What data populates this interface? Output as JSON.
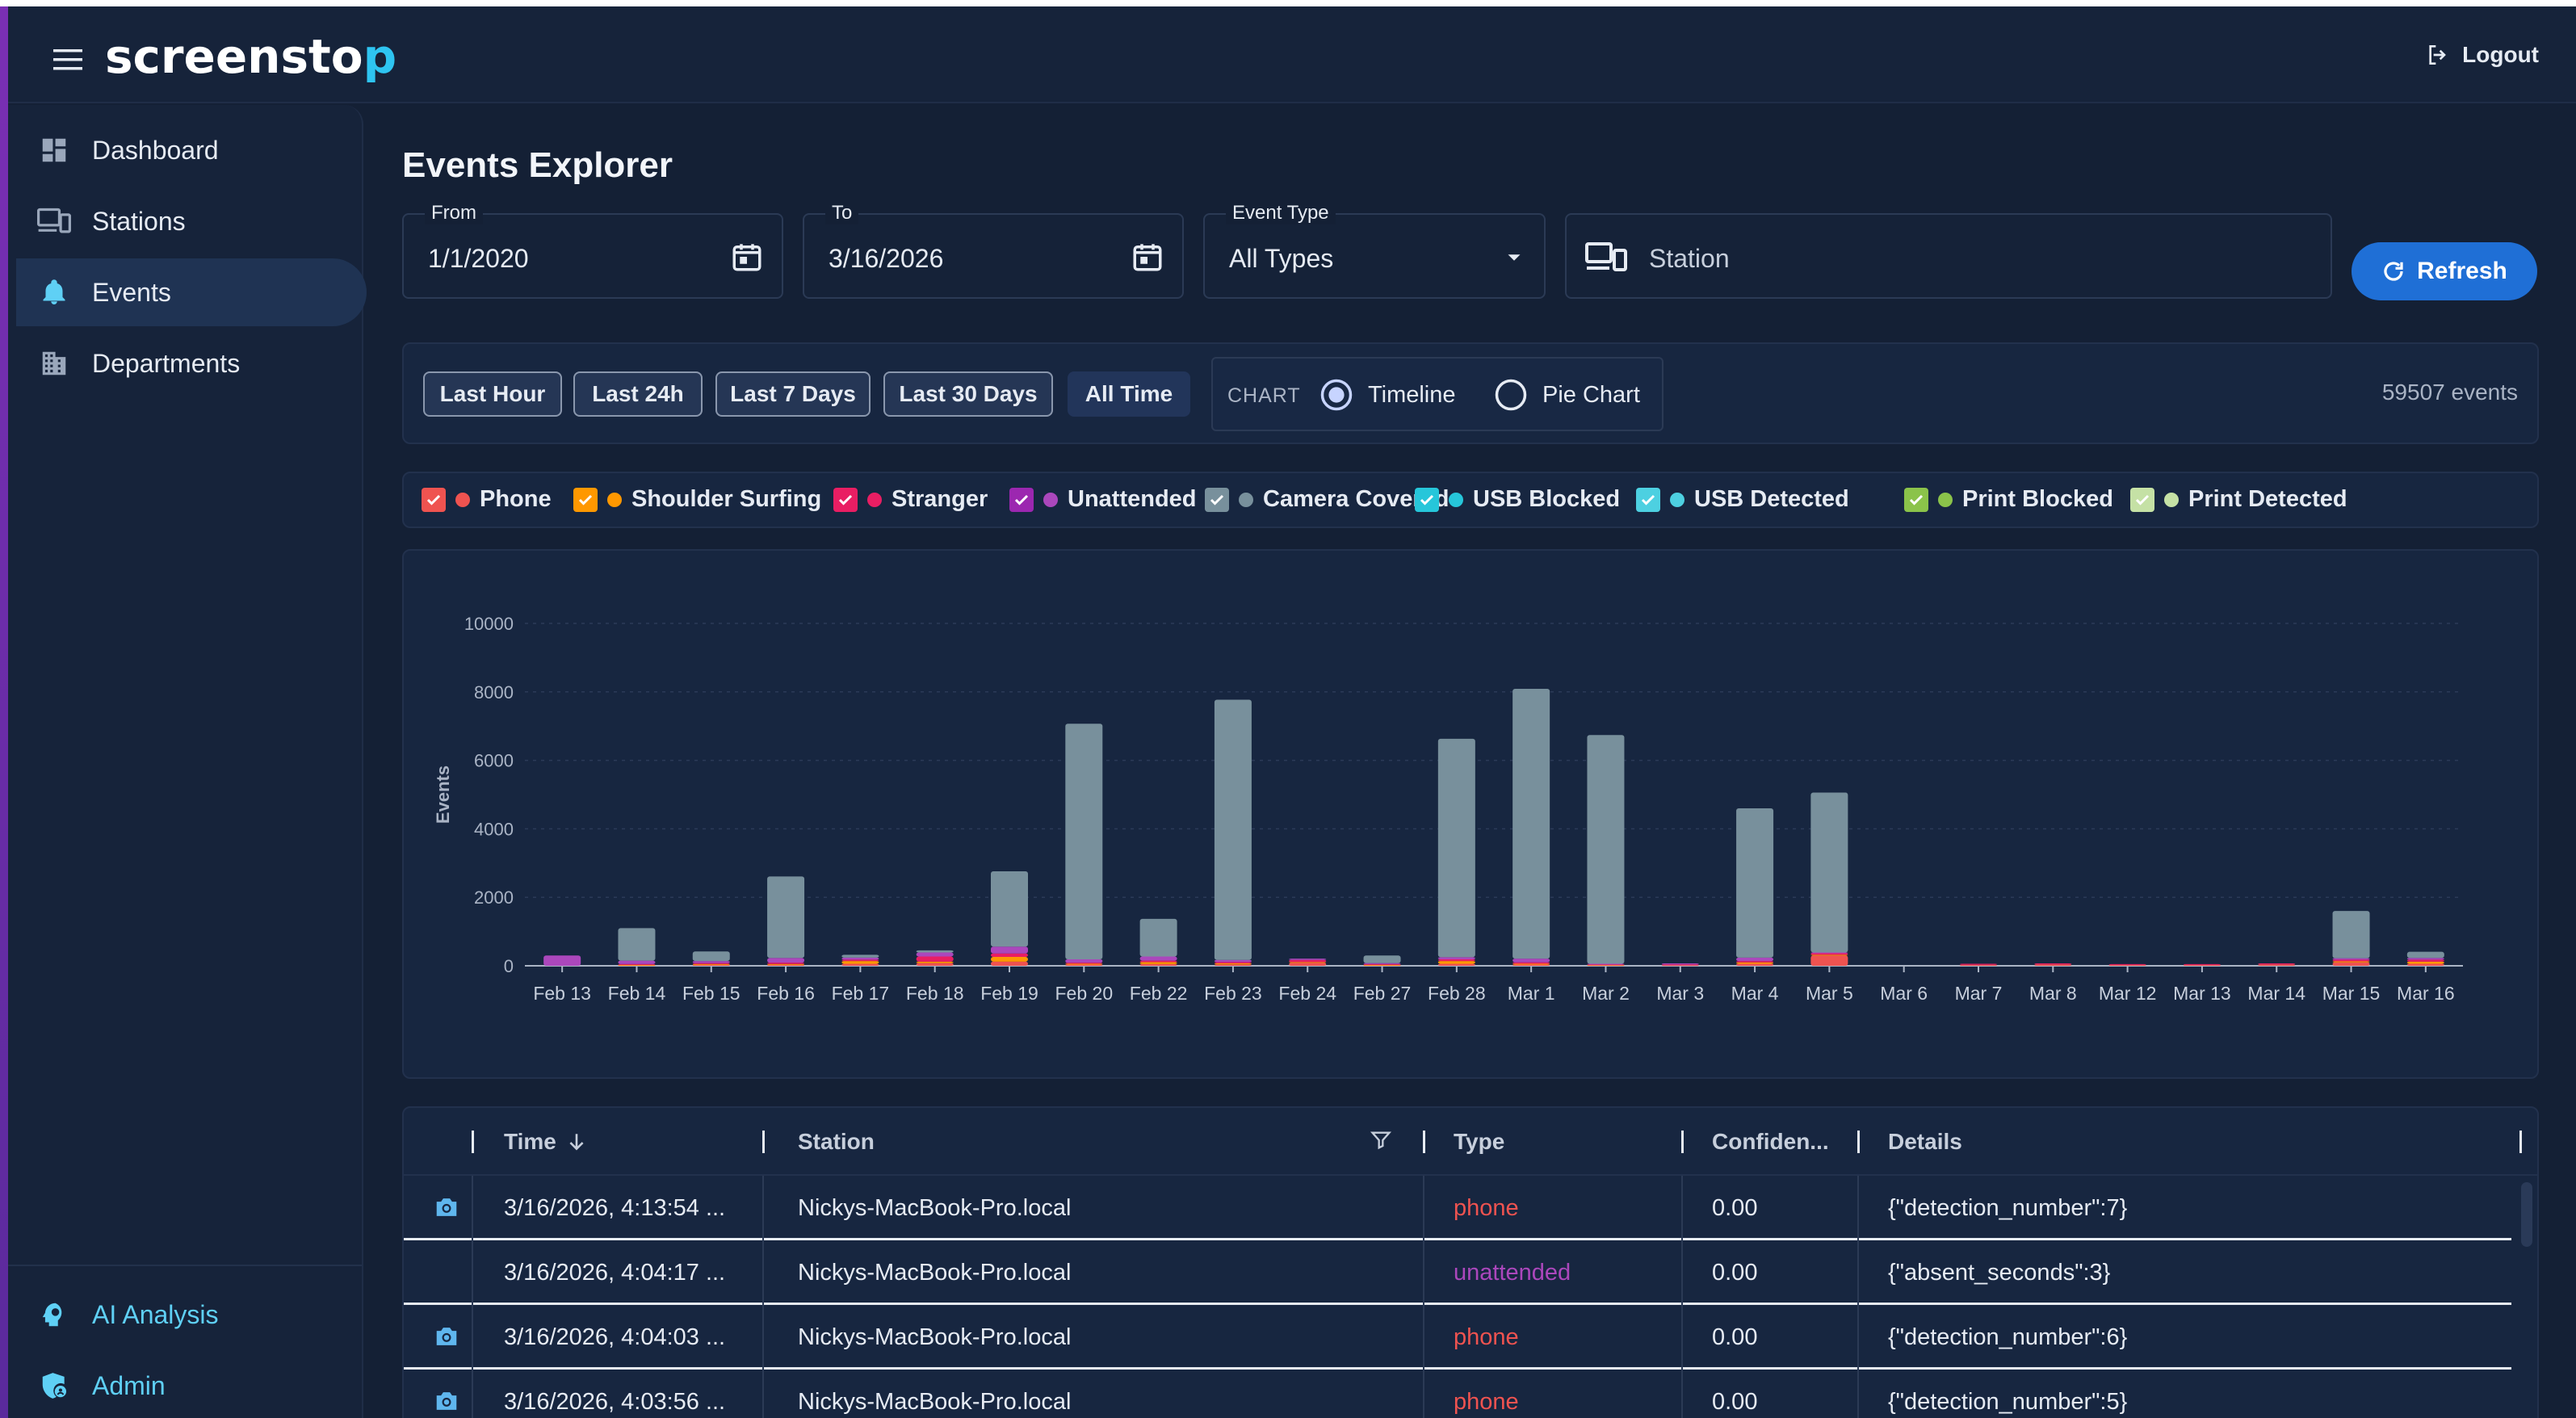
{
  "app": {
    "logo_main": "screensto",
    "logo_accent": "p",
    "logout_label": "Logout"
  },
  "sidebar": {
    "items": [
      {
        "label": "Dashboard",
        "icon": "dashboard-icon"
      },
      {
        "label": "Stations",
        "icon": "devices-icon"
      },
      {
        "label": "Events",
        "icon": "bell-icon"
      },
      {
        "label": "Departments",
        "icon": "building-icon"
      }
    ],
    "bottom_items": [
      {
        "label": "AI Analysis",
        "icon": "psychology-icon"
      },
      {
        "label": "Admin",
        "icon": "admin-shield-icon"
      }
    ],
    "active": "Events"
  },
  "page": {
    "title": "Events Explorer"
  },
  "filters": {
    "from_label": "From",
    "from_value": "1/1/2020",
    "to_label": "To",
    "to_value": "3/16/2026",
    "type_label": "Event Type",
    "type_value": "All Types",
    "station_placeholder": "Station",
    "refresh_label": "Refresh"
  },
  "quick_ranges": {
    "items": [
      "Last Hour",
      "Last 24h",
      "Last 7 Days",
      "Last 30 Days",
      "All Time"
    ],
    "selected": "All Time",
    "chart_label": "CHART",
    "chart_options": [
      "Timeline",
      "Pie Chart"
    ],
    "chart_selected": "Timeline",
    "event_count": "59507 events"
  },
  "legend": [
    {
      "label": "Phone",
      "color": "#ef5350",
      "box": "#ef5350"
    },
    {
      "label": "Shoulder Surfing",
      "color": "#ff9800",
      "box": "#ff9800"
    },
    {
      "label": "Stranger",
      "color": "#e91e63",
      "box": "#e91e63"
    },
    {
      "label": "Unattended",
      "color": "#ab47bc",
      "box": "#9c27b0"
    },
    {
      "label": "Camera Covered",
      "color": "#78909c",
      "box": "#78909c"
    },
    {
      "label": "USB Blocked",
      "color": "#26c6da",
      "box": "#26c6da"
    },
    {
      "label": "USB Detected",
      "color": "#4dd0e1",
      "box": "#4dd0e1"
    },
    {
      "label": "Print Blocked",
      "color": "#8bc34a",
      "box": "#8bc34a"
    },
    {
      "label": "Print Detected",
      "color": "#c5e1a5",
      "box": "#c5e1a5"
    }
  ],
  "chart_data": {
    "type": "bar",
    "ylabel": "Events",
    "ylim": [
      0,
      10000
    ],
    "yticks": [
      0,
      2000,
      4000,
      6000,
      8000,
      10000
    ],
    "categories": [
      "Feb 13",
      "Feb 14",
      "Feb 15",
      "Feb 16",
      "Feb 17",
      "Feb 18",
      "Feb 19",
      "Feb 20",
      "Feb 22",
      "Feb 23",
      "Feb 24",
      "Feb 27",
      "Feb 28",
      "Mar 1",
      "Mar 2",
      "Mar 3",
      "Mar 4",
      "Mar 5",
      "Mar 6",
      "Mar 7",
      "Mar 8",
      "Mar 12",
      "Mar 13",
      "Mar 14",
      "Mar 15",
      "Mar 16"
    ],
    "stacked": true,
    "grid": true,
    "series": [
      {
        "name": "Phone",
        "color": "#ef5350",
        "values": [
          0,
          20,
          30,
          30,
          60,
          80,
          120,
          40,
          50,
          40,
          90,
          20,
          60,
          40,
          20,
          20,
          60,
          300,
          0,
          30,
          40,
          30,
          30,
          40,
          100,
          60
        ]
      },
      {
        "name": "Shoulder Surfing",
        "color": "#ff9800",
        "values": [
          0,
          10,
          20,
          20,
          80,
          40,
          140,
          20,
          60,
          30,
          20,
          10,
          80,
          20,
          10,
          0,
          40,
          20,
          0,
          0,
          0,
          0,
          0,
          0,
          30,
          60
        ]
      },
      {
        "name": "Stranger",
        "color": "#e91e63",
        "values": [
          0,
          20,
          30,
          40,
          40,
          150,
          100,
          30,
          40,
          40,
          60,
          20,
          50,
          40,
          10,
          20,
          40,
          50,
          0,
          30,
          30,
          20,
          20,
          30,
          50,
          60
        ]
      },
      {
        "name": "Unattended",
        "color": "#ab47bc",
        "values": [
          300,
          100,
          60,
          140,
          60,
          120,
          200,
          100,
          120,
          60,
          40,
          30,
          60,
          110,
          20,
          30,
          100,
          20,
          0,
          0,
          0,
          0,
          0,
          0,
          40,
          50
        ]
      },
      {
        "name": "Camera Covered",
        "color": "#78909c",
        "values": [
          0,
          950,
          280,
          2380,
          80,
          60,
          2200,
          6880,
          1100,
          7600,
          0,
          220,
          6380,
          7880,
          6680,
          0,
          4360,
          4670,
          0,
          0,
          0,
          0,
          0,
          0,
          1380,
          180
        ]
      }
    ]
  },
  "table": {
    "columns": [
      "Time",
      "Station",
      "Type",
      "Confiden...",
      "Details"
    ],
    "rows": [
      {
        "has_snapshot": true,
        "time": "3/16/2026, 4:13:54 ...",
        "station": "Nickys-MacBook-Pro.local",
        "type": "phone",
        "confidence": "0.00",
        "details": "{\"detection_number\":7}"
      },
      {
        "has_snapshot": false,
        "time": "3/16/2026, 4:04:17 ...",
        "station": "Nickys-MacBook-Pro.local",
        "type": "unattended",
        "confidence": "0.00",
        "details": "{\"absent_seconds\":3}"
      },
      {
        "has_snapshot": true,
        "time": "3/16/2026, 4:04:03 ...",
        "station": "Nickys-MacBook-Pro.local",
        "type": "phone",
        "confidence": "0.00",
        "details": "{\"detection_number\":6}"
      },
      {
        "has_snapshot": true,
        "time": "3/16/2026, 4:03:56 ...",
        "station": "Nickys-MacBook-Pro.local",
        "type": "phone",
        "confidence": "0.00",
        "details": "{\"detection_number\":5}"
      }
    ]
  }
}
